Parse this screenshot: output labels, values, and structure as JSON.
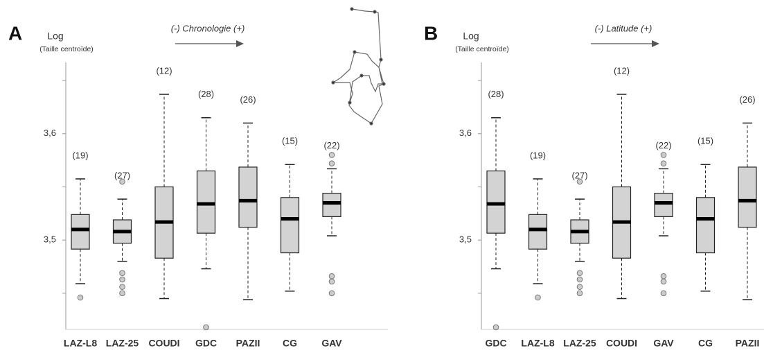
{
  "chart_data": [
    {
      "type": "box",
      "panel": "A",
      "title": "Log",
      "subtitle": "(Taille centroïde)",
      "annotation": "(-) Chronologie (+)",
      "categories": [
        "LAZ-L8",
        "LAZ-25",
        "COUDI",
        "GDC",
        "PAZII",
        "CG",
        "GAV"
      ],
      "counts": [
        19,
        27,
        12,
        28,
        26,
        15,
        22
      ],
      "count_labels": [
        "(19)",
        "(27)",
        "(12)",
        "(28)",
        "(26)",
        "(15)",
        "(22)"
      ],
      "whishi": [
        3.5575,
        3.5385,
        3.637,
        3.615,
        3.61,
        3.571,
        3.567
      ],
      "q3": [
        3.524,
        3.519,
        3.55,
        3.565,
        3.5686,
        3.54,
        3.544
      ],
      "median": [
        3.51,
        3.508,
        3.517,
        3.534,
        3.537,
        3.52,
        3.535
      ],
      "q1": [
        3.4915,
        3.497,
        3.483,
        3.5065,
        3.512,
        3.488,
        3.522
      ],
      "whislo": [
        3.459,
        3.48,
        3.445,
        3.473,
        3.444,
        3.452,
        3.504
      ],
      "fliers": [
        [
          3.446
        ],
        [
          3.555,
          3.469,
          3.463,
          3.456,
          3.45
        ],
        [],
        [
          3.418
        ],
        [],
        [],
        [
          3.58,
          3.572,
          3.466,
          3.461,
          3.45
        ]
      ],
      "ylim": [
        3.416,
        3.667
      ],
      "yticks": [
        {
          "value": 3.45,
          "label": null
        },
        {
          "value": 3.5,
          "label": "3,5"
        },
        {
          "value": 3.55,
          "label": null
        },
        {
          "value": 3.6,
          "label": "3,6"
        },
        {
          "value": 3.65,
          "label": null
        }
      ],
      "box_color": "#d3d3d3",
      "flier_color": "#cccccc"
    },
    {
      "type": "box",
      "panel": "B",
      "title": "Log",
      "subtitle": "(Taille centroïde)",
      "annotation": "(-) Latitude (+)",
      "categories": [
        "GDC",
        "LAZ-L8",
        "LAZ-25",
        "COUDI",
        "GAV",
        "CG",
        "PAZII"
      ],
      "counts": [
        28,
        19,
        27,
        12,
        22,
        15,
        26
      ],
      "count_labels": [
        "(28)",
        "(19)",
        "(27)",
        "(12)",
        "(22)",
        "(15)",
        "(26)"
      ],
      "whishi": [
        3.615,
        3.5575,
        3.5385,
        3.637,
        3.567,
        3.571,
        3.61
      ],
      "q3": [
        3.565,
        3.524,
        3.519,
        3.55,
        3.544,
        3.54,
        3.5686
      ],
      "median": [
        3.534,
        3.51,
        3.508,
        3.517,
        3.535,
        3.52,
        3.537
      ],
      "q1": [
        3.5065,
        3.4915,
        3.497,
        3.483,
        3.522,
        3.488,
        3.512
      ],
      "whislo": [
        3.473,
        3.459,
        3.48,
        3.445,
        3.504,
        3.452,
        3.444
      ],
      "fliers": [
        [
          3.418
        ],
        [
          3.446
        ],
        [
          3.555,
          3.469,
          3.463,
          3.456,
          3.45
        ],
        [],
        [
          3.58,
          3.572,
          3.466,
          3.461,
          3.45
        ],
        [],
        []
      ],
      "ylim": [
        3.416,
        3.667
      ],
      "yticks": [
        {
          "value": 3.45,
          "label": null
        },
        {
          "value": 3.5,
          "label": "3,5"
        },
        {
          "value": 3.55,
          "label": null
        },
        {
          "value": 3.6,
          "label": "3,6"
        },
        {
          "value": 3.65,
          "label": null
        }
      ],
      "box_color": "#d3d3d3",
      "flier_color": "#cccccc"
    }
  ]
}
